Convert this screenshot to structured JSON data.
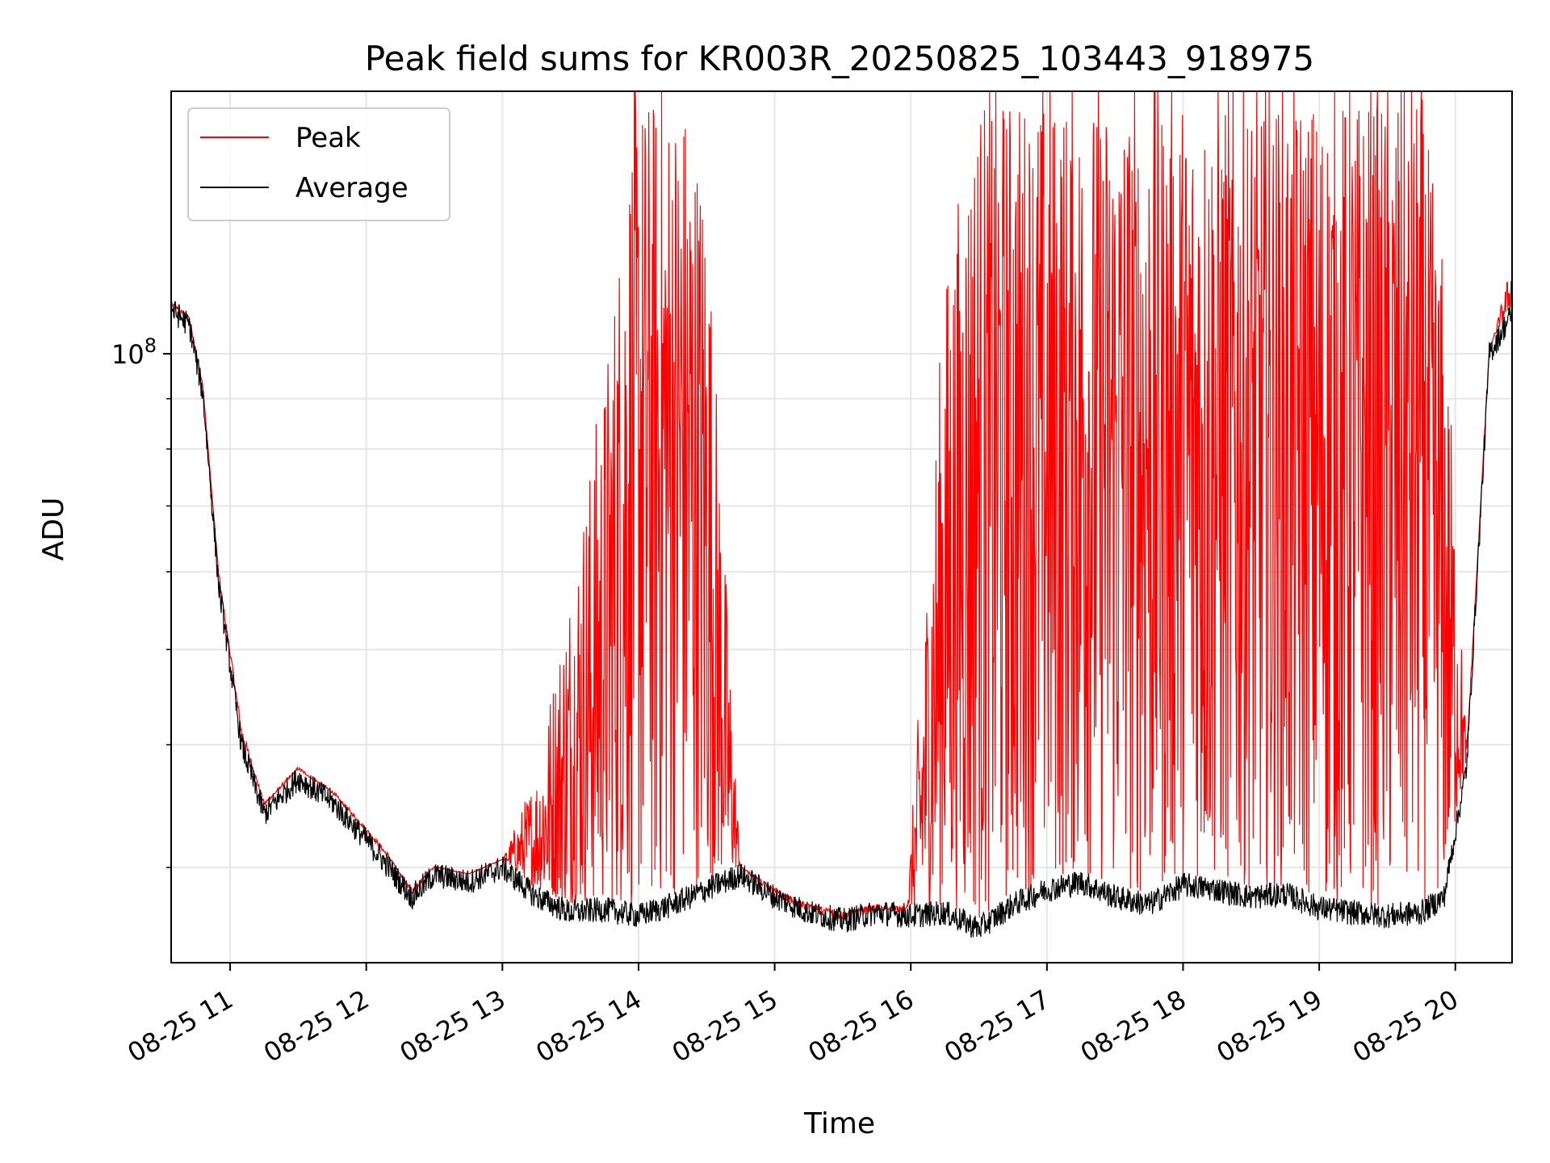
{
  "chart_data": {
    "type": "line",
    "title": "Peak field sums for KR003R_20250825_103443_918975",
    "xlabel": "Time",
    "ylabel": "ADU",
    "yscale": "log",
    "ylim": [
      24000000,
      185000000
    ],
    "xlim": [
      "2025-08-25 10:34",
      "2025-08-25 20:25"
    ],
    "x_tick_labels": [
      "08-25 11",
      "08-25 12",
      "08-25 13",
      "08-25 14",
      "08-25 15",
      "08-25 16",
      "08-25 17",
      "08-25 18",
      "08-25 19",
      "08-25 20"
    ],
    "y_tick_labels": [
      {
        "value": 100000000,
        "base": "10",
        "exp": "8"
      }
    ],
    "grid": true,
    "legend_position": "upper-left",
    "series": [
      {
        "name": "Peak",
        "color": "#ff0000",
        "x": [
          "2025-08-25 10:34",
          "2025-08-25 10:42",
          "2025-08-25 10:48",
          "2025-08-25 10:55",
          "2025-08-25 11:05",
          "2025-08-25 11:15",
          "2025-08-25 11:30",
          "2025-08-25 11:45",
          "2025-08-25 12:00",
          "2025-08-25 12:10",
          "2025-08-25 12:20",
          "2025-08-25 12:30",
          "2025-08-25 12:45",
          "2025-08-25 13:00",
          "2025-08-25 13:15",
          "2025-08-25 13:30",
          "2025-08-25 13:45",
          "2025-08-25 13:58",
          "2025-08-25 14:10",
          "2025-08-25 14:20",
          "2025-08-25 14:30",
          "2025-08-25 14:45",
          "2025-08-25 15:00",
          "2025-08-25 15:15",
          "2025-08-25 15:30",
          "2025-08-25 15:45",
          "2025-08-25 15:58",
          "2025-08-25 16:15",
          "2025-08-25 16:30",
          "2025-08-25 16:45",
          "2025-08-25 17:00",
          "2025-08-25 17:15",
          "2025-08-25 17:30",
          "2025-08-25 17:45",
          "2025-08-25 18:00",
          "2025-08-25 18:15",
          "2025-08-25 18:30",
          "2025-08-25 18:45",
          "2025-08-25 19:00",
          "2025-08-25 19:15",
          "2025-08-25 19:30",
          "2025-08-25 19:45",
          "2025-08-25 19:55",
          "2025-08-25 20:05",
          "2025-08-25 20:15",
          "2025-08-25 20:25"
        ],
        "y": [
          112000000,
          108000000,
          92000000,
          60000000,
          42000000,
          35000000,
          38000000,
          36000000,
          33000000,
          31000000,
          28000000,
          30000000,
          29500000,
          30500000,
          38000000,
          60000000,
          95000000,
          185000000,
          185000000,
          185000000,
          150000000,
          30000000,
          28000000,
          27000000,
          26500000,
          27000000,
          27000000,
          120000000,
          185000000,
          185000000,
          185000000,
          185000000,
          185000000,
          185000000,
          185000000,
          185000000,
          185000000,
          185000000,
          185000000,
          185000000,
          185000000,
          185000000,
          120000000,
          40000000,
          100000000,
          125000000
        ]
      },
      {
        "name": "Average",
        "color": "#000000",
        "x": [
          "2025-08-25 10:34",
          "2025-08-25 10:42",
          "2025-08-25 10:48",
          "2025-08-25 10:55",
          "2025-08-25 11:05",
          "2025-08-25 11:15",
          "2025-08-25 11:30",
          "2025-08-25 11:45",
          "2025-08-25 12:00",
          "2025-08-25 12:10",
          "2025-08-25 12:20",
          "2025-08-25 12:30",
          "2025-08-25 12:45",
          "2025-08-25 13:00",
          "2025-08-25 13:15",
          "2025-08-25 13:30",
          "2025-08-25 13:45",
          "2025-08-25 14:00",
          "2025-08-25 14:15",
          "2025-08-25 14:30",
          "2025-08-25 14:45",
          "2025-08-25 15:00",
          "2025-08-25 15:15",
          "2025-08-25 15:30",
          "2025-08-25 15:45",
          "2025-08-25 16:00",
          "2025-08-25 16:15",
          "2025-08-25 16:30",
          "2025-08-25 16:45",
          "2025-08-25 17:00",
          "2025-08-25 17:15",
          "2025-08-25 17:30",
          "2025-08-25 17:45",
          "2025-08-25 18:00",
          "2025-08-25 18:15",
          "2025-08-25 18:30",
          "2025-08-25 18:45",
          "2025-08-25 19:00",
          "2025-08-25 19:15",
          "2025-08-25 19:30",
          "2025-08-25 19:45",
          "2025-08-25 19:55",
          "2025-08-25 20:05",
          "2025-08-25 20:15",
          "2025-08-25 20:25"
        ],
        "y": [
          111000000,
          107000000,
          91000000,
          58000000,
          40000000,
          34000000,
          37000000,
          35000000,
          32000000,
          30000000,
          28000000,
          29500000,
          29000000,
          30000000,
          28000000,
          27000000,
          27200000,
          26800000,
          27500000,
          28500000,
          29500000,
          28000000,
          27000000,
          26500000,
          27000000,
          26800000,
          27000000,
          26000000,
          27500000,
          28500000,
          29000000,
          28000000,
          27500000,
          28800000,
          28500000,
          28000000,
          28200000,
          27300000,
          27000000,
          26800000,
          27000000,
          28000000,
          38000000,
          100000000,
          110000000
        ]
      }
    ]
  }
}
